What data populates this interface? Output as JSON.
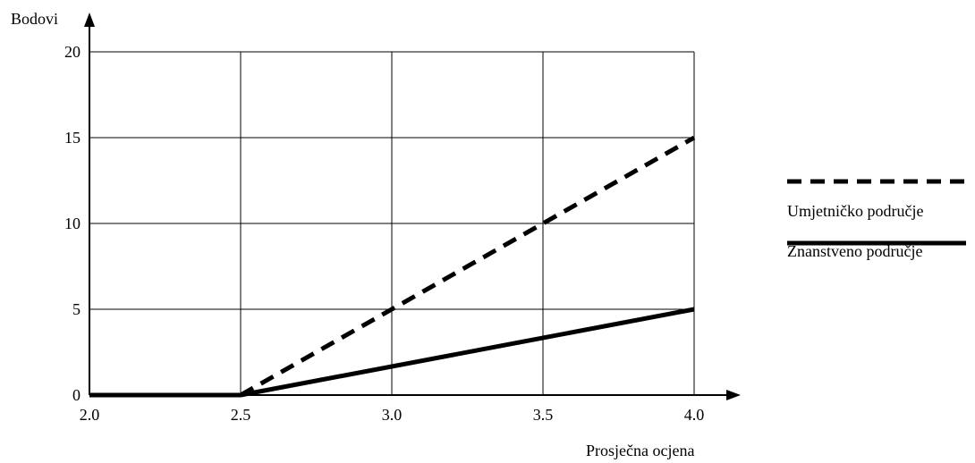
{
  "chart_data": {
    "type": "line",
    "title": "",
    "xlabel": "Prosječna ocjena",
    "ylabel": "Bodovi",
    "xlim": [
      2.0,
      4.0
    ],
    "ylim": [
      0,
      20
    ],
    "x_ticks": [
      "2.0",
      "2.5",
      "3.0",
      "3.5",
      "4.0"
    ],
    "y_ticks": [
      "0",
      "5",
      "10",
      "15",
      "20"
    ],
    "grid": true,
    "legend_position": "right",
    "series": [
      {
        "name": "Umjetničko područje",
        "style": "dashed",
        "color": "#000000",
        "points": [
          [
            2.5,
            0
          ],
          [
            4.0,
            15
          ]
        ]
      },
      {
        "name": "Znanstveno područje",
        "style": "solid",
        "color": "#000000",
        "points": [
          [
            2.0,
            0
          ],
          [
            2.5,
            0
          ],
          [
            4.0,
            5
          ]
        ]
      }
    ]
  }
}
